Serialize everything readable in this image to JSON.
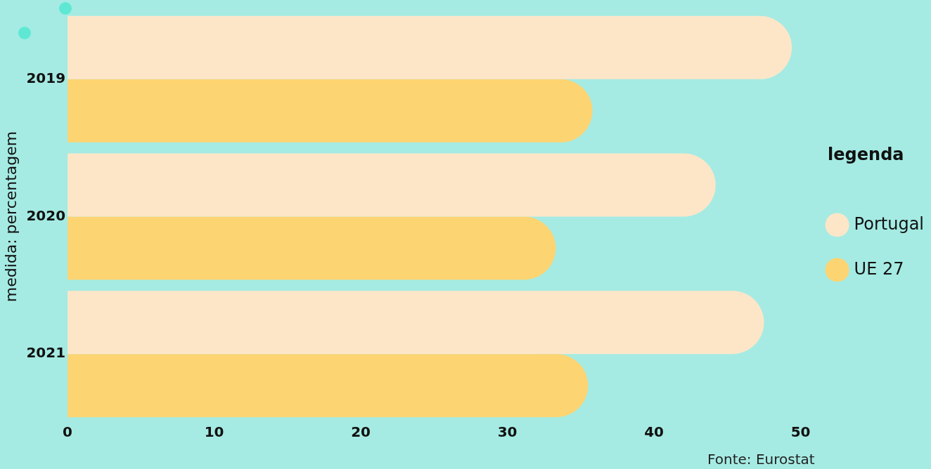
{
  "chart_data": {
    "type": "bar",
    "orientation": "horizontal",
    "categories": [
      "2019",
      "2020",
      "2021"
    ],
    "series": [
      {
        "name": "Portugal",
        "color": "#fde6c8",
        "values": [
          49.4,
          44.2,
          47.5
        ]
      },
      {
        "name": "UE 27",
        "color": "#fdd472",
        "values": [
          35.8,
          33.3,
          35.5
        ]
      }
    ],
    "xlim": [
      0,
      50
    ],
    "xticks": [
      0,
      10,
      20,
      30,
      40,
      50
    ],
    "ylabel": "medida: percentagem",
    "legend_title": "legenda",
    "legend": "right",
    "grid": false,
    "annotations": [
      "Fonte: Eurostat"
    ]
  }
}
